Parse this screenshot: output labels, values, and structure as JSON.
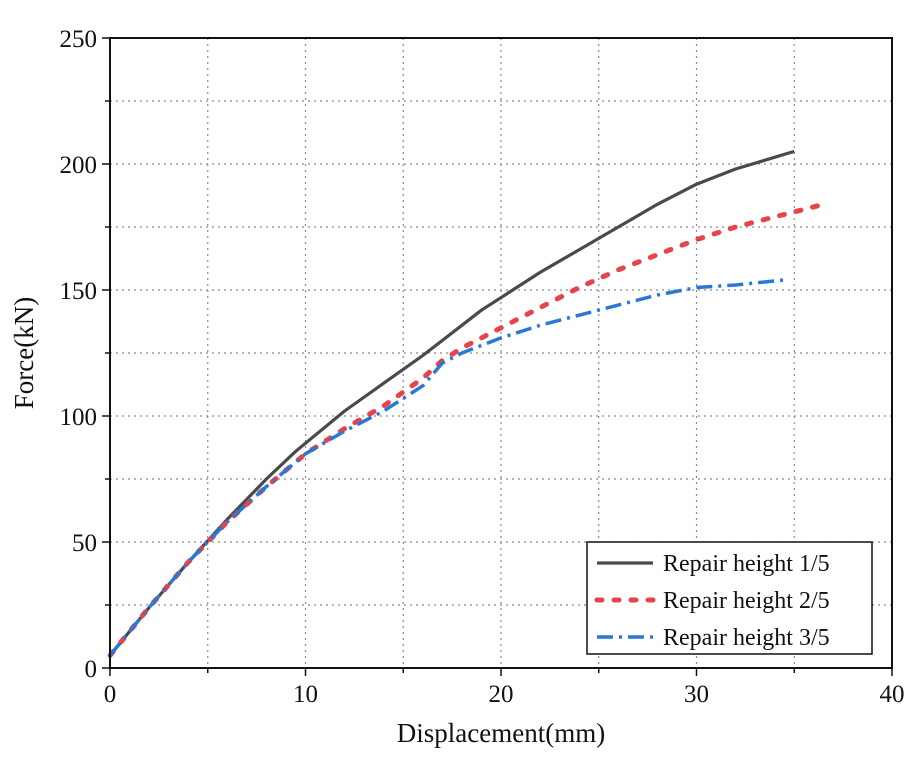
{
  "chart_data": {
    "type": "line",
    "title": "",
    "xlabel": "Displacement(mm)",
    "ylabel": "Force(kN)",
    "xlim": [
      0,
      40
    ],
    "ylim": [
      0,
      250
    ],
    "xticks": [
      0,
      10,
      20,
      30,
      40
    ],
    "yticks": [
      0,
      50,
      100,
      150,
      200,
      250
    ],
    "xtick_labels": [
      "0",
      "10",
      "20",
      "30",
      "40"
    ],
    "ytick_labels": [
      "0",
      "50",
      "100",
      "150",
      "200",
      "250"
    ],
    "grid": true,
    "legend_position": "bottom-right",
    "series": [
      {
        "name": "Repair height 1/5",
        "color": "#4a4a4a",
        "style": "solid",
        "x": [
          0,
          2,
          4,
          6,
          8,
          9.5,
          12,
          14,
          16,
          18,
          19,
          20,
          22,
          24,
          26,
          28,
          30,
          32,
          35
        ],
        "y": [
          5,
          24,
          42,
          59,
          75,
          86,
          102,
          113,
          124,
          136,
          142,
          147,
          157,
          166,
          175,
          184,
          192,
          198,
          205
        ]
      },
      {
        "name": "Repair height 2/5",
        "color": "#e8424b",
        "style": "dotted",
        "x": [
          0,
          2,
          4,
          6,
          8,
          10,
          12,
          14,
          16,
          17,
          18,
          20,
          22,
          24,
          26,
          28,
          30,
          32,
          34,
          36.5
        ],
        "y": [
          5,
          24,
          42,
          58,
          72,
          85,
          95,
          104,
          115,
          122,
          127,
          135,
          143,
          151,
          158,
          164,
          170,
          175,
          179,
          184
        ]
      },
      {
        "name": "Repair height 3/5",
        "color": "#2a78d6",
        "style": "dashdot",
        "x": [
          0,
          2,
          4,
          6,
          8,
          10,
          12,
          14,
          16,
          17,
          18,
          20,
          22,
          24,
          26,
          28,
          30,
          32,
          34.5
        ],
        "y": [
          5,
          24,
          42,
          58,
          72,
          85,
          94,
          102,
          112,
          121,
          125,
          131,
          136,
          140,
          144,
          148,
          151,
          152,
          154
        ]
      }
    ]
  }
}
